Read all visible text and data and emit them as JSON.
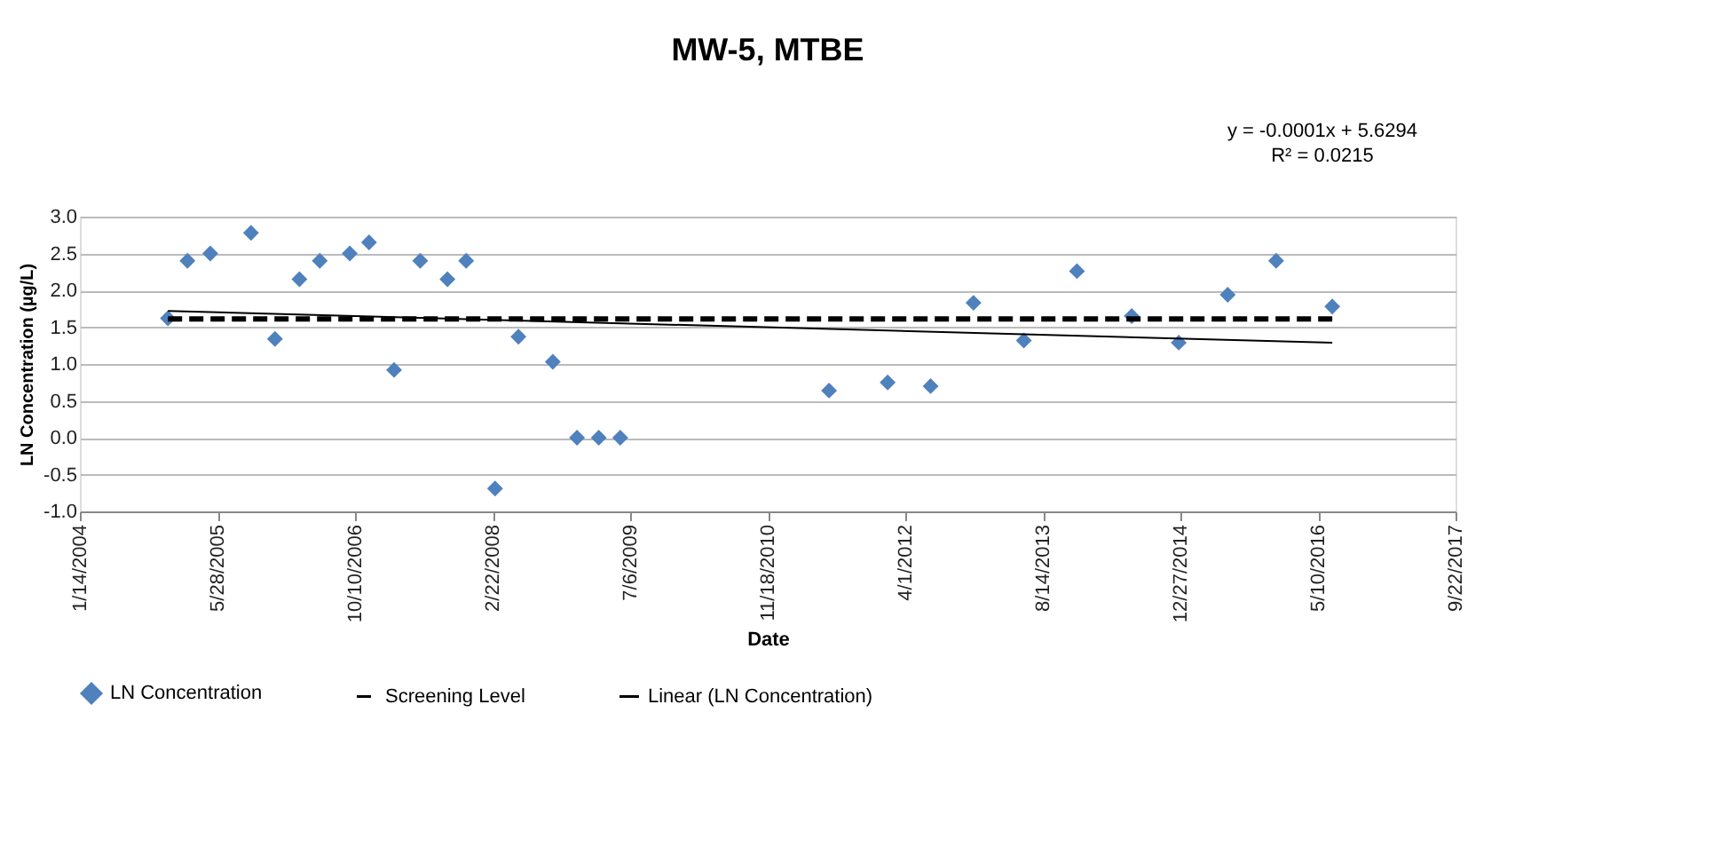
{
  "chart_data": {
    "type": "scatter",
    "title": "MW-5, MTBE",
    "xlabel": "Date",
    "ylabel": "LN Concentration (µg/L)",
    "annotations": [
      "y = -0.0001x + 5.6294",
      "R² = 0.0215"
    ],
    "xlim": [
      "2004-01-14",
      "2017-09-22"
    ],
    "xticks": [
      {
        "value": "2004-01-14",
        "label": "1/14/2004"
      },
      {
        "value": "2005-05-28",
        "label": "5/28/2005"
      },
      {
        "value": "2006-10-10",
        "label": "10/10/2006"
      },
      {
        "value": "2008-02-22",
        "label": "2/22/2008"
      },
      {
        "value": "2009-07-06",
        "label": "7/6/2009"
      },
      {
        "value": "2010-11-18",
        "label": "11/18/2010"
      },
      {
        "value": "2012-04-01",
        "label": "4/1/2012"
      },
      {
        "value": "2013-08-14",
        "label": "8/14/2013"
      },
      {
        "value": "2014-12-27",
        "label": "12/27/2014"
      },
      {
        "value": "2016-05-10",
        "label": "5/10/2016"
      },
      {
        "value": "2017-09-22",
        "label": "9/22/2017"
      }
    ],
    "ylim": [
      -1.0,
      3.0
    ],
    "yticks": [
      {
        "value": -1,
        "label": "-1.0"
      },
      {
        "value": -0.5,
        "label": "-0.5"
      },
      {
        "value": 0,
        "label": "0.0"
      },
      {
        "value": 0.5,
        "label": "0.5"
      },
      {
        "value": 1,
        "label": "1.0"
      },
      {
        "value": 1.5,
        "label": "1.5"
      },
      {
        "value": 2,
        "label": "2.0"
      },
      {
        "value": 2.5,
        "label": "2.5"
      },
      {
        "value": 3,
        "label": "3.0"
      }
    ],
    "grid": "y",
    "legend": "bottom",
    "series": [
      {
        "name": "LN Concentration",
        "type": "scatter",
        "marker": "diamond",
        "color": "#4f81bd",
        "x": [
          "2004-11-29",
          "2005-02-08",
          "2005-05-02",
          "2005-09-27",
          "2005-12-23",
          "2006-03-22",
          "2006-06-04",
          "2006-09-21",
          "2006-11-30",
          "2007-03-01",
          "2007-06-04",
          "2007-09-11",
          "2007-11-18",
          "2008-03-02",
          "2008-05-26",
          "2008-09-28",
          "2008-12-25",
          "2009-03-14",
          "2009-05-31",
          "2011-06-29",
          "2012-01-28",
          "2012-07-02",
          "2012-12-05",
          "2013-06-06",
          "2013-12-16",
          "2014-07-03",
          "2014-12-21",
          "2015-06-17",
          "2015-12-10",
          "2016-07-01"
        ],
        "values": [
          1.62,
          2.4,
          2.5,
          2.78,
          1.34,
          2.15,
          2.4,
          2.5,
          2.65,
          0.92,
          2.4,
          2.15,
          2.4,
          -0.69,
          1.37,
          1.03,
          0,
          0,
          0,
          0.64,
          0.75,
          0.7,
          1.83,
          1.32,
          2.26,
          1.65,
          1.29,
          1.94,
          2.4,
          1.78
        ]
      },
      {
        "name": "Screening Level",
        "type": "line",
        "line_style": "dashed",
        "marker": "none",
        "color": "#000000",
        "x": [
          "2004-11-29",
          "2016-07-01"
        ],
        "values": [
          1.61,
          1.61
        ]
      },
      {
        "name": "Linear (LN Concentration)",
        "type": "line",
        "line_style": "solid",
        "marker": "none",
        "color": "#000000",
        "x": [
          "2004-11-29",
          "2016-07-01"
        ],
        "values": [
          1.72,
          1.29
        ]
      }
    ]
  }
}
